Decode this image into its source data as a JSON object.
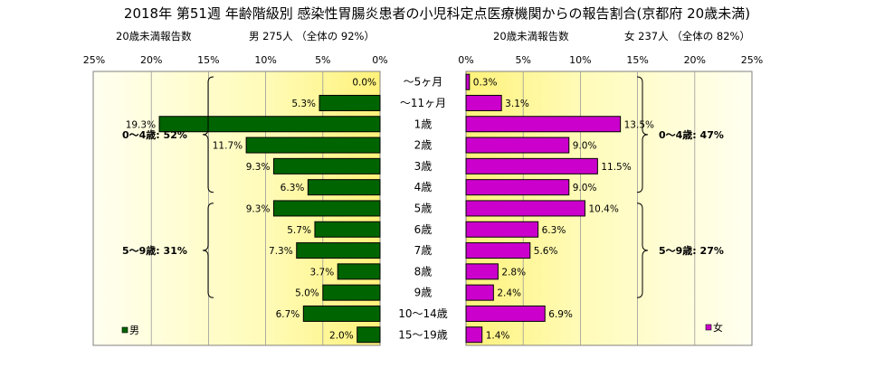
{
  "title": "2018年 第51週 年齢階級別 感染性胃腸炎患者の小児科定点医療機関からの報告割合(京都府 20歳未満)",
  "chart_data": [
    {
      "type": "bar",
      "side": "left",
      "series_name": "男",
      "header_left": "20歳未満報告数",
      "header_right": "男  275人 （全体の  92%）",
      "color": "#006400",
      "xlim": [
        0,
        25
      ],
      "ticks": [
        "25%",
        "20%",
        "15%",
        "10%",
        "5%",
        "0%"
      ],
      "categories": [
        "～5ヶ月",
        "～11ヶ月",
        "1歳",
        "2歳",
        "3歳",
        "4歳",
        "5歳",
        "6歳",
        "7歳",
        "8歳",
        "9歳",
        "10～14歳",
        "15～19歳"
      ],
      "values": [
        0.0,
        5.3,
        19.3,
        11.7,
        9.3,
        6.3,
        9.3,
        5.7,
        7.3,
        3.7,
        5.0,
        6.7,
        2.0
      ],
      "value_labels": [
        "0.0%",
        "5.3%",
        "19.3%",
        "11.7%",
        "9.3%",
        "6.3%",
        "9.3%",
        "5.7%",
        "7.3%",
        "3.7%",
        "5.0%",
        "6.7%",
        "2.0%"
      ],
      "groups": [
        {
          "label": "0～4歳: 52%",
          "from": 0,
          "to": 5
        },
        {
          "label": "5～9歳: 31%",
          "from": 6,
          "to": 10
        }
      ]
    },
    {
      "type": "bar",
      "side": "right",
      "series_name": "女",
      "header_left": "20歳未満報告数",
      "header_right": "女  237人 （全体の  82%）",
      "color": "#cc00cc",
      "xlim": [
        0,
        25
      ],
      "ticks": [
        "0%",
        "5%",
        "10%",
        "15%",
        "20%",
        "25%"
      ],
      "categories": [
        "～5ヶ月",
        "～11ヶ月",
        "1歳",
        "2歳",
        "3歳",
        "4歳",
        "5歳",
        "6歳",
        "7歳",
        "8歳",
        "9歳",
        "10～14歳",
        "15～19歳"
      ],
      "values": [
        0.3,
        3.1,
        13.5,
        9.0,
        11.5,
        9.0,
        10.4,
        6.3,
        5.6,
        2.8,
        2.4,
        6.9,
        1.4
      ],
      "value_labels": [
        "0.3%",
        "3.1%",
        "13.5%",
        "9.0%",
        "11.5%",
        "9.0%",
        "10.4%",
        "6.3%",
        "5.6%",
        "2.8%",
        "2.4%",
        "6.9%",
        "1.4%"
      ],
      "groups": [
        {
          "label": "0～4歳: 47%",
          "from": 0,
          "to": 5
        },
        {
          "label": "5～9歳: 27%",
          "from": 6,
          "to": 10
        }
      ]
    }
  ]
}
